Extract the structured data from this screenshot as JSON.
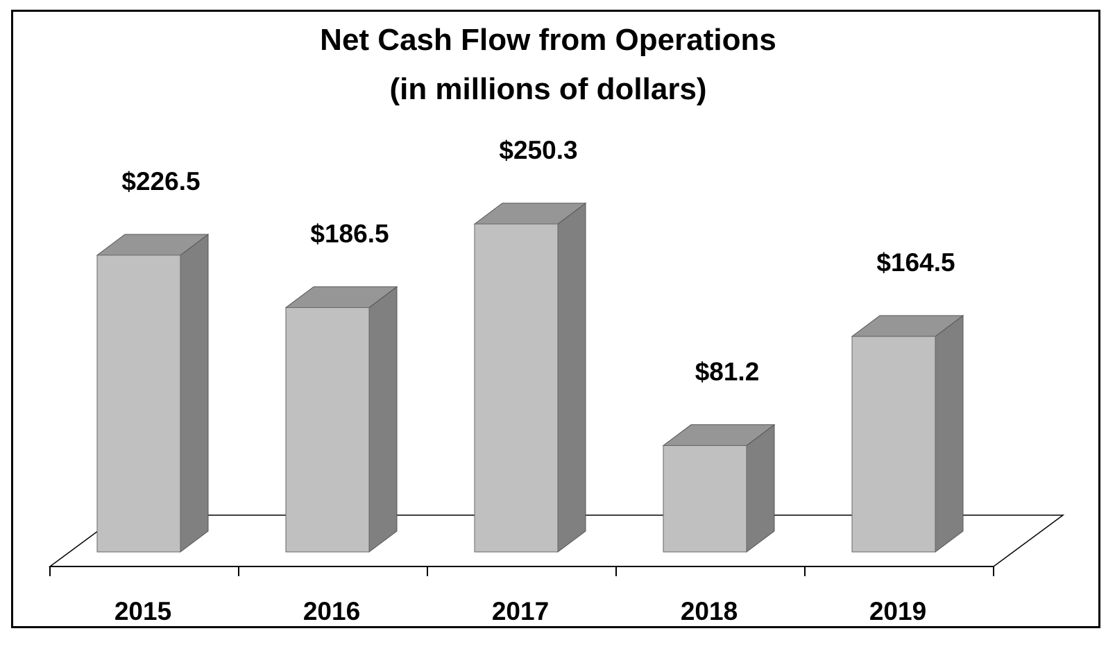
{
  "chart_data": {
    "type": "bar",
    "title": "Net Cash Flow from Operations",
    "subtitle": "(in millions of dollars)",
    "categories": [
      "2015",
      "2016",
      "2017",
      "2018",
      "2019"
    ],
    "values": [
      226.5,
      186.5,
      250.3,
      81.2,
      164.5
    ],
    "data_labels": [
      "$226.5",
      "$186.5",
      "$250.3",
      "$81.2",
      "$164.5"
    ],
    "xlabel": "",
    "ylabel": "",
    "ylim": [
      0,
      250.3
    ],
    "grid": false,
    "legend": "none",
    "style": "3d-column",
    "colors": {
      "front": "#c0c0c0",
      "side": "#808080",
      "top": "#969696",
      "frame": "#000000"
    }
  }
}
